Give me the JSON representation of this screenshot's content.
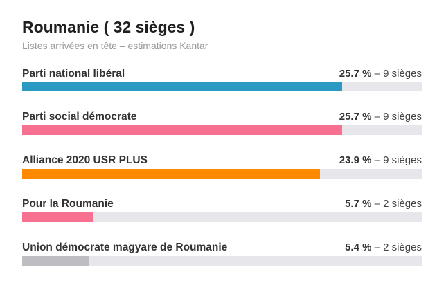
{
  "title": "Roumanie ( 32 sièges )",
  "subtitle": "Listes arrivées en tête – estimations Kantar",
  "chart_data": {
    "type": "bar",
    "orientation": "horizontal",
    "xlim": [
      0,
      32.1
    ],
    "categories": [
      "Parti national libéral",
      "Parti social démocrate",
      "Alliance 2020 USR PLUS",
      "Pour la Roumanie",
      "Union démocrate magyare de Roumanie"
    ],
    "values": [
      25.7,
      25.7,
      23.9,
      5.7,
      5.4
    ],
    "bars": [
      {
        "party": "Parti national libéral",
        "pct_label": "25.7 %",
        "seats_label": "9 sièges",
        "value": 25.7,
        "color": "#2a9ac2"
      },
      {
        "party": "Parti social démocrate",
        "pct_label": "25.7 %",
        "seats_label": "9 sièges",
        "value": 25.7,
        "color": "#f8708f"
      },
      {
        "party": "Alliance 2020 USR PLUS",
        "pct_label": "23.9 %",
        "seats_label": "9 sièges",
        "value": 23.9,
        "color": "#ff8a00"
      },
      {
        "party": "Pour la Roumanie",
        "pct_label": "5.7 %",
        "seats_label": "2 sièges",
        "value": 5.7,
        "color": "#f8708f"
      },
      {
        "party": "Union démocrate magyare de Roumanie",
        "pct_label": "5.4 %",
        "seats_label": "2 sièges",
        "value": 5.4,
        "color": "#bdbdc2"
      }
    ]
  },
  "separator": " – "
}
